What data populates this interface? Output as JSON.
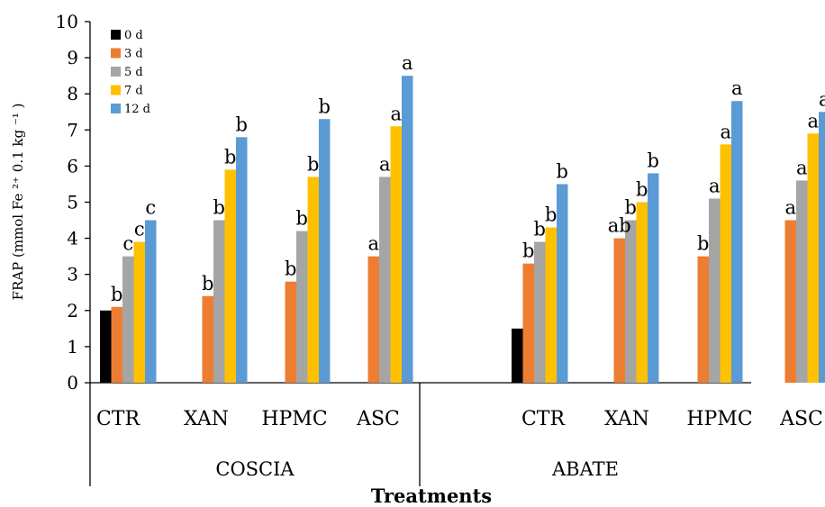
{
  "chart_data": {
    "type": "bar",
    "ylabel": "FRAP (mmol Fe ²⁺ 0.1 kg ⁻¹ )",
    "xlabel": "Treatments",
    "ylim": [
      0,
      10
    ],
    "yticks": [
      0,
      1,
      2,
      3,
      4,
      5,
      6,
      7,
      8,
      9,
      10
    ],
    "grid": false,
    "legend_position": "top-left",
    "groups": [
      {
        "name": "COSCIA",
        "categories": [
          "CTR",
          "XAN",
          "HPMC",
          "ASC"
        ]
      },
      {
        "name": "ABATE",
        "categories": [
          "CTR",
          "XAN",
          "HPMC",
          "ASC"
        ]
      }
    ],
    "series": [
      {
        "name": "0 d",
        "color": "#000000",
        "values": [
          2.0,
          null,
          null,
          null,
          1.5,
          null,
          null,
          null
        ],
        "labels": [
          "",
          "",
          "",
          "",
          "",
          "",
          "",
          ""
        ]
      },
      {
        "name": "3 d",
        "color": "#ED7D31",
        "values": [
          2.1,
          2.4,
          2.8,
          3.5,
          3.3,
          4.0,
          3.5,
          4.5
        ],
        "labels": [
          "b",
          "b",
          "b",
          "a",
          "b",
          "ab",
          "b",
          "a"
        ]
      },
      {
        "name": "5 d",
        "color": "#A5A5A5",
        "values": [
          3.5,
          4.5,
          4.2,
          5.7,
          3.9,
          4.5,
          5.1,
          5.6
        ],
        "labels": [
          "c",
          "b",
          "b",
          "a",
          "b",
          "b",
          "a",
          "a"
        ]
      },
      {
        "name": "7 d",
        "color": "#FFC000",
        "values": [
          3.9,
          5.9,
          5.7,
          7.1,
          4.3,
          5.0,
          6.6,
          6.9
        ],
        "labels": [
          "c",
          "b",
          "b",
          "a",
          "b",
          "b",
          "a",
          "a"
        ]
      },
      {
        "name": "12 d",
        "color": "#5B9BD5",
        "values": [
          4.5,
          6.8,
          7.3,
          8.5,
          5.5,
          5.8,
          7.8,
          7.5
        ],
        "labels": [
          "c",
          "b",
          "b",
          "a",
          "b",
          "b",
          "a",
          "a"
        ]
      }
    ]
  }
}
